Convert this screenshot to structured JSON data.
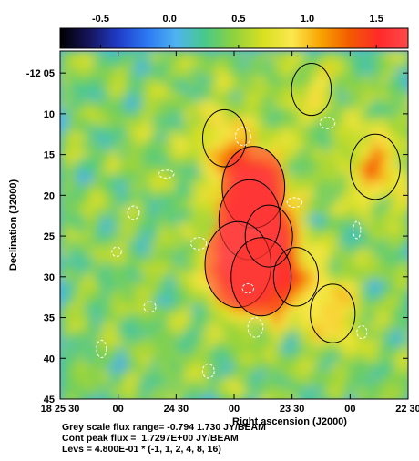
{
  "colors": {
    "colormap": [
      "#000000",
      "#16145a",
      "#1f3cc8",
      "#2c78f2",
      "#4fb3f0",
      "#48c98a",
      "#8fd23d",
      "#d9e021",
      "#fbe84e",
      "#f7a300",
      "#f25a00",
      "#ff2a2a",
      "#ff4a4a"
    ],
    "contour_positive": "#000000",
    "contour_negative": "#ffffff"
  },
  "chart_data": {
    "type": "heatmap",
    "colorbar": {
      "range": [
        -0.794,
        1.73
      ],
      "ticks": [
        -0.5,
        0.0,
        0.5,
        1.0,
        1.5
      ],
      "tick_labels": [
        "-0.5",
        "0.0",
        "0.5",
        "1.0",
        "1.5"
      ]
    },
    "xlabel": "Right ascension (J2000)",
    "ylabel": "Declination (J2000)",
    "x_ticks": [
      {
        "ra_seconds": 0,
        "label": "18 25 30"
      },
      {
        "ra_seconds": 30,
        "label": "00"
      },
      {
        "ra_seconds": 60,
        "label": "24 30"
      },
      {
        "ra_seconds": 90,
        "label": "00"
      },
      {
        "ra_seconds": 120,
        "label": "23 30"
      },
      {
        "ra_seconds": 150,
        "label": "00"
      },
      {
        "ra_seconds": 180,
        "label": "22 30"
      }
    ],
    "y_ticks": [
      {
        "dec_arcmin": 5,
        "label": "-12 05"
      },
      {
        "dec_arcmin": 10,
        "label": "10"
      },
      {
        "dec_arcmin": 15,
        "label": "15"
      },
      {
        "dec_arcmin": 20,
        "label": "20"
      },
      {
        "dec_arcmin": 25,
        "label": "25"
      },
      {
        "dec_arcmin": 30,
        "label": "30"
      },
      {
        "dec_arcmin": 35,
        "label": "35"
      },
      {
        "dec_arcmin": 40,
        "label": "40"
      },
      {
        "dec_arcmin": 45,
        "label": "45"
      }
    ],
    "x_range_ra_seconds": [
      0,
      180
    ],
    "y_range_dec_arcmin": [
      2.3,
      45
    ],
    "contour_levels": [
      -0.48,
      0.48,
      0.96,
      1.92,
      3.84,
      7.68
    ],
    "peak_flux": 1.7297,
    "emission_peaks": [
      {
        "ra_seconds": 100,
        "dec_arcmin": 19.0,
        "flux": 1.6
      },
      {
        "ra_seconds": 98,
        "dec_arcmin": 23.0,
        "flux": 1.55
      },
      {
        "ra_seconds": 92,
        "dec_arcmin": 28.5,
        "flux": 1.73
      },
      {
        "ra_seconds": 104,
        "dec_arcmin": 30.0,
        "flux": 1.5
      },
      {
        "ra_seconds": 108,
        "dec_arcmin": 25.0,
        "flux": 1.0
      },
      {
        "ra_seconds": 85,
        "dec_arcmin": 13.0,
        "flux": 0.85
      },
      {
        "ra_seconds": 122,
        "dec_arcmin": 30.0,
        "flux": 0.9
      },
      {
        "ra_seconds": 163,
        "dec_arcmin": 16.5,
        "flux": 1.1
      },
      {
        "ra_seconds": 141,
        "dec_arcmin": 34.5,
        "flux": 0.9
      },
      {
        "ra_seconds": 130,
        "dec_arcmin": 7.0,
        "flux": 0.7
      }
    ]
  },
  "captions": {
    "flux_range": "Grey scale flux range= -0.794 1.730 JY/BEAM",
    "peak_flux": "Cont peak flux =  1.7297E+00 JY/BEAM",
    "levels": "Levs = 4.800E-01 * (-1, 1, 2, 4, 8, 16)"
  }
}
